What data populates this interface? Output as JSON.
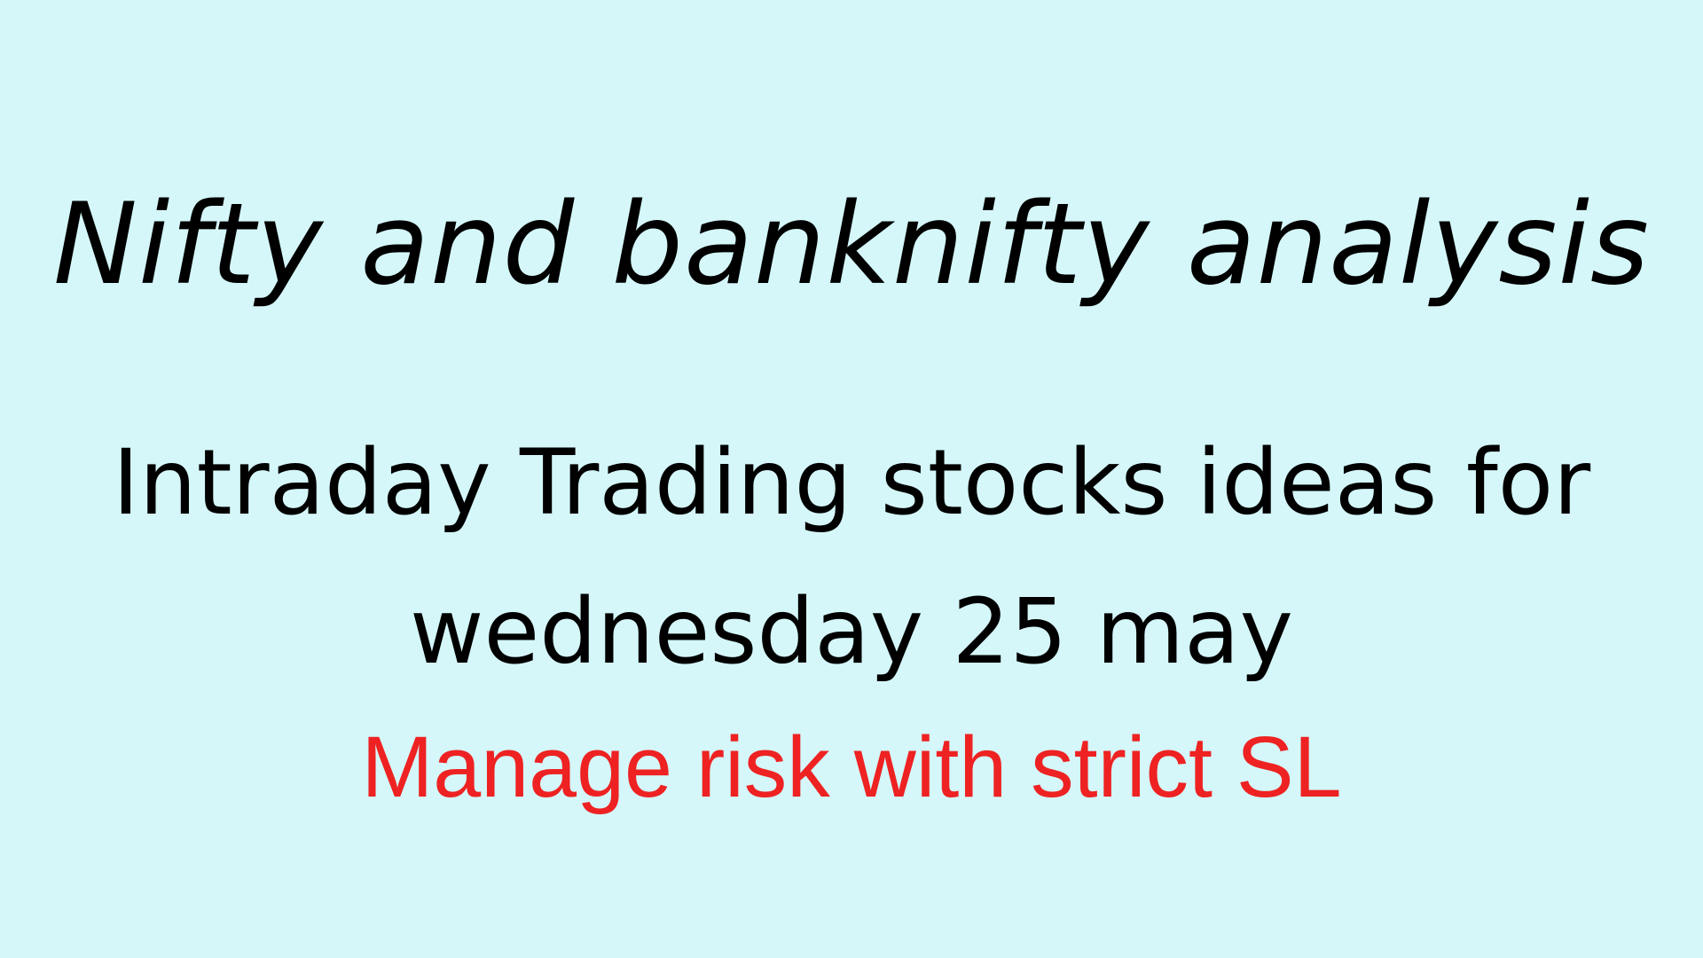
{
  "title": "Nifty and banknifty analysis",
  "subtitle_line1": "Intraday Trading stocks ideas for",
  "subtitle_line2": "wednesday 25 may",
  "note": "Manage risk with strict SL",
  "colors": {
    "background": "#d5f7f9",
    "text": "#000000",
    "note": "#ee2222"
  }
}
